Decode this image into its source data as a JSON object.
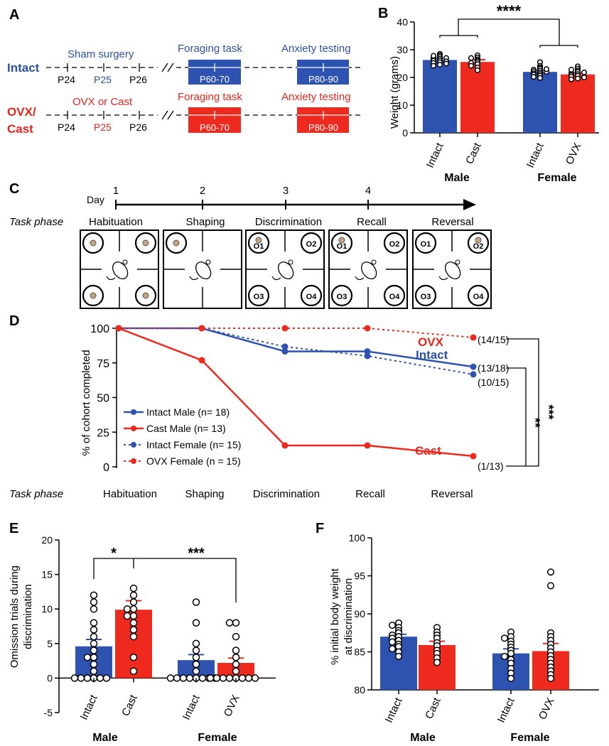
{
  "panels": {
    "a": "A",
    "b": "B",
    "c": "C",
    "d": "D",
    "e": "E",
    "f": "F"
  },
  "colors": {
    "blue": "#2d52b0",
    "red": "#ee2a1e"
  },
  "timeline_a": {
    "intact": {
      "group": "Intact",
      "surgery": "Sham surgery",
      "days": [
        "P24",
        "P25",
        "P26"
      ],
      "task1": "Foraging task",
      "task1_box": "P60-70",
      "task2": "Anxiety testing",
      "task2_box": "P80-90"
    },
    "ovx": {
      "group_line1": "OVX/",
      "group_line2": "Cast",
      "surgery": "OVX or Cast",
      "days": [
        "P24",
        "P25",
        "P26"
      ],
      "task1": "Foraging task",
      "task1_box": "P60-70",
      "task2": "Anxiety testing",
      "task2_box": "P80-90"
    }
  },
  "task_c": {
    "day_label": "Day",
    "days": [
      "1",
      "2",
      "3",
      "4"
    ],
    "phase_label": "Task phase",
    "phases": [
      "Habituation",
      "Shaping",
      "Discrimination",
      "Recall",
      "Reversal"
    ],
    "odors": [
      "O1",
      "O2",
      "O3",
      "O4"
    ]
  },
  "chart_data": [
    {
      "id": "B",
      "type": "bar",
      "ylabel": "Weight (grams)",
      "ylim": [
        0,
        40
      ],
      "yticks": [
        "0",
        "10",
        "20",
        "30",
        "40"
      ],
      "categories": [
        "Intact",
        "Cast",
        "Intact",
        "OVX"
      ],
      "sex_groups": [
        "Male",
        "Female"
      ],
      "values": [
        26.3,
        25.6,
        22.0,
        21.1
      ],
      "sem": [
        0.6,
        0.8,
        0.5,
        0.5
      ],
      "points": [
        [
          28.5,
          28.0,
          27.5,
          27.2,
          27.0,
          26.8,
          26.5,
          26.2,
          26.0,
          25.8,
          25.5,
          25.2,
          25.0,
          24.6,
          24.2,
          27.8
        ],
        [
          28.0,
          27.2,
          26.5,
          26.0,
          25.5,
          25.2,
          24.8,
          24.2,
          23.6,
          22.6,
          27.0
        ],
        [
          25.5,
          24.2,
          23.6,
          23.2,
          22.8,
          22.5,
          22.2,
          21.8,
          21.5,
          21.2,
          21.0,
          20.6,
          20.2,
          19.8,
          22.0,
          23.0
        ],
        [
          24.0,
          23.2,
          22.5,
          22.0,
          21.6,
          21.2,
          20.9,
          20.6,
          20.3,
          20.0,
          19.6,
          21.8,
          22.8,
          19.3
        ]
      ],
      "significance": "****"
    },
    {
      "id": "D",
      "type": "line",
      "ylabel": "% of cohort completed",
      "ylim": [
        0,
        100
      ],
      "yticks": [
        "0",
        "25",
        "50",
        "75",
        "100"
      ],
      "xlabel": "Task phase",
      "categories": [
        "Habituation",
        "Shaping",
        "Discrimination",
        "Recall",
        "Reversal"
      ],
      "series": [
        {
          "name": "Intact Male (n= 18)",
          "values": [
            100,
            100,
            83.3,
            83.3,
            72.2
          ]
        },
        {
          "name": "Cast Male (n= 13)",
          "values": [
            100,
            76.9,
            15.4,
            15.4,
            7.7
          ]
        },
        {
          "name": "Intact Female (n= 15)",
          "values": [
            100,
            100,
            86.7,
            80.0,
            66.7
          ]
        },
        {
          "name": "OVX Female (n = 15)",
          "values": [
            100,
            100,
            100,
            100,
            93.3
          ]
        }
      ],
      "labels": {
        "ovx": "OVX",
        "intact": "Intact",
        "cast": "Cast"
      },
      "end_labels": [
        "(14/15)",
        "(13/18)",
        "(10/15)",
        "(1/13)"
      ],
      "significance": [
        "**",
        "***"
      ]
    },
    {
      "id": "E",
      "type": "bar",
      "ylabel_line1": "Omission trials during",
      "ylabel_line2": "discrimination",
      "ylim": [
        -5,
        20
      ],
      "yticks": [
        "-5",
        "0",
        "5",
        "10",
        "15",
        "20"
      ],
      "categories": [
        "Intact",
        "Cast",
        "Intact",
        "OVX"
      ],
      "sex_groups": [
        "Male",
        "Female"
      ],
      "values": [
        4.6,
        9.9,
        2.6,
        2.2
      ],
      "sem": [
        1.0,
        1.3,
        0.8,
        0.7
      ],
      "points": [
        [
          12,
          11,
          10,
          8,
          7,
          6,
          5,
          4,
          3,
          3,
          2,
          1,
          0,
          0,
          0,
          0,
          0,
          0
        ],
        [
          13,
          12,
          11,
          10,
          10,
          9,
          9,
          8,
          7,
          6,
          3,
          1
        ],
        [
          11,
          8,
          5,
          4,
          3,
          2,
          1,
          0,
          0,
          0,
          0,
          0,
          0,
          0,
          0
        ],
        [
          8,
          8,
          6,
          4,
          3,
          2,
          1,
          0,
          0,
          0,
          0,
          0,
          0,
          0,
          0
        ]
      ],
      "significance": [
        "*",
        "***"
      ]
    },
    {
      "id": "F",
      "type": "bar",
      "ylabel_line1": "% initial body weight",
      "ylabel_line2": "at discrimination",
      "ylim": [
        80,
        100
      ],
      "yticks": [
        "80",
        "85",
        "90",
        "95",
        "100"
      ],
      "categories": [
        "Intact",
        "Cast",
        "Intact",
        "OVX"
      ],
      "sex_groups": [
        "Male",
        "Female"
      ],
      "values": [
        87.0,
        85.9,
        84.8,
        85.1
      ],
      "sem": [
        0.3,
        0.5,
        0.6,
        1.0
      ],
      "points": [
        [
          88.8,
          88.5,
          88.2,
          87.8,
          87.5,
          87.2,
          87.0,
          86.8,
          86.5,
          86.3,
          86.0,
          85.7,
          85.4,
          85.0,
          84.4
        ],
        [
          88.2,
          87.6,
          87.2,
          86.8,
          86.2,
          85.8,
          85.2,
          84.8,
          84.2,
          83.6
        ],
        [
          87.6,
          87.0,
          86.4,
          86.0,
          85.6,
          85.2,
          84.8,
          84.4,
          84.0,
          83.5,
          82.8,
          82.2,
          81.5,
          86.8
        ],
        [
          95.5,
          93.7,
          87.5,
          87.0,
          86.5,
          86.0,
          85.5,
          85.0,
          84.5,
          84.0,
          83.5,
          83.0,
          82.5,
          82.0,
          81.5
        ]
      ]
    }
  ]
}
